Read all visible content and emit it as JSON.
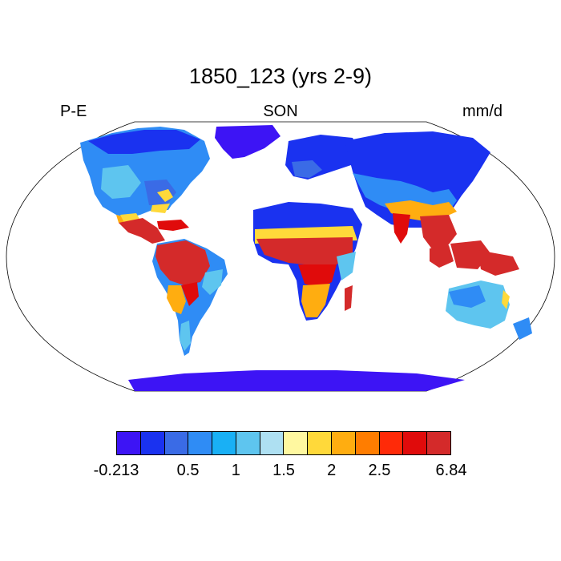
{
  "map": {
    "title": "1850_123 (yrs 2-9)",
    "left_label": "P-E",
    "center_label": "SON",
    "right_label": "mm/d",
    "projection": "robinson",
    "ocean_color": "#ffffff",
    "outline_color": "#000000"
  },
  "legend": {
    "colors": [
      "#3d14f5",
      "#1a32f0",
      "#3a6be6",
      "#2f8cf5",
      "#19b0f5",
      "#5ec5ef",
      "#aee0f2",
      "#fff8a0",
      "#ffd93a",
      "#ffad10",
      "#ff7d00",
      "#ff2a08",
      "#e00b0b",
      "#d42a2a"
    ],
    "ticks": [
      {
        "label": "-0.213",
        "index": 0
      },
      {
        "label": "0.5",
        "index": 3
      },
      {
        "label": "1",
        "index": 5
      },
      {
        "label": "1.5",
        "index": 7
      },
      {
        "label": "2",
        "index": 9
      },
      {
        "label": "2.5",
        "index": 11
      },
      {
        "label": "6.84",
        "index": 14
      }
    ]
  }
}
